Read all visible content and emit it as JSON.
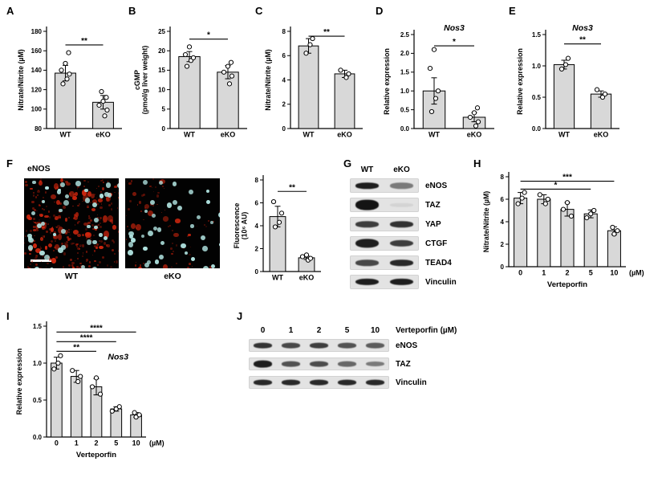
{
  "figure": {
    "panel_labels": {
      "A": "A",
      "B": "B",
      "C": "C",
      "D": "D",
      "E": "E",
      "F": "F",
      "G": "G",
      "H": "H",
      "I": "I",
      "J": "J"
    }
  },
  "panel_f": {
    "stain_label": "eNOS",
    "image_labels": [
      "WT",
      "eKO"
    ]
  },
  "panel_g": {
    "lanes": [
      "WT",
      "eKO"
    ],
    "rows": [
      {
        "label": "eNOS",
        "bands": [
          0.95,
          0.5
        ]
      },
      {
        "label": "TAZ",
        "bands": [
          1.0,
          0.07
        ],
        "h": [
          1.7,
          0.6
        ]
      },
      {
        "label": "YAP",
        "bands": [
          0.8,
          0.85
        ]
      },
      {
        "label": "CTGF",
        "bands": [
          0.95,
          0.8
        ],
        "h": [
          1.5,
          1.1
        ]
      },
      {
        "label": "TEAD4",
        "bands": [
          0.75,
          0.9
        ]
      },
      {
        "label": "Vinculin",
        "bands": [
          0.95,
          0.95
        ],
        "h": [
          1.1,
          1.1
        ]
      }
    ]
  },
  "panel_j": {
    "lanes": [
      "0",
      "1",
      "2",
      "5",
      "10"
    ],
    "header_label": "Verteporfin (µM)",
    "rows": [
      {
        "label": "eNOS",
        "bands": [
          0.85,
          0.75,
          0.8,
          0.7,
          0.65
        ]
      },
      {
        "label": "TAZ",
        "bands": [
          0.95,
          0.7,
          0.72,
          0.6,
          0.5
        ],
        "h": [
          1.3,
          1,
          1,
          1,
          0.9
        ]
      },
      {
        "label": "Vinculin",
        "bands": [
          0.9,
          0.9,
          0.9,
          0.9,
          0.9
        ]
      }
    ]
  },
  "chart_data": [
    {
      "id": "A",
      "type": "bar",
      "ylabel": [
        "Nitrate/Nitrite (µM)"
      ],
      "ylim": [
        80,
        180
      ],
      "yticks": [
        80,
        100,
        120,
        140,
        160,
        180
      ],
      "ydec": 0,
      "categories": [
        "WT",
        "eKO"
      ],
      "values": [
        137,
        107
      ],
      "errors": [
        8,
        7
      ],
      "points": [
        [
          126,
          131,
          136,
          140,
          147,
          158
        ],
        [
          93,
          99,
          104,
          108,
          112,
          118
        ]
      ],
      "sig": [
        {
          "a": 0,
          "b": 1,
          "y": 166,
          "label": "**"
        }
      ]
    },
    {
      "id": "B",
      "type": "bar",
      "ylabel": [
        "cGMP",
        "(pmol/g liver weight)"
      ],
      "ylim": [
        0,
        25
      ],
      "yticks": [
        0,
        5,
        10,
        15,
        20,
        25
      ],
      "ydec": 0,
      "categories": [
        "WT",
        "eKO"
      ],
      "values": [
        18.5,
        14.5
      ],
      "errors": [
        1.3,
        1.7
      ],
      "points": [
        [
          16,
          17.5,
          18.2,
          19,
          21
        ],
        [
          11.5,
          13.5,
          14.5,
          16,
          17
        ]
      ],
      "sig": [
        {
          "a": 0,
          "b": 1,
          "y": 23,
          "label": "*"
        }
      ]
    },
    {
      "id": "C",
      "type": "bar",
      "ylabel": [
        "Nitrate/Nitrite (µM)"
      ],
      "ylim": [
        0,
        8
      ],
      "yticks": [
        0,
        2,
        4,
        6,
        8
      ],
      "ydec": 0,
      "categories": [
        "WT",
        "eKO"
      ],
      "values": [
        6.8,
        4.5
      ],
      "errors": [
        0.6,
        0.3
      ],
      "points": [
        [
          6.2,
          6.9,
          7.4
        ],
        [
          4.2,
          4.5,
          4.8
        ]
      ],
      "sig": [
        {
          "a": 0,
          "b": 1,
          "y": 7.6,
          "label": "**"
        }
      ]
    },
    {
      "id": "D",
      "type": "bar",
      "title": "Nos3",
      "ylabel": [
        "Relative expression"
      ],
      "ylim": [
        0,
        2.5
      ],
      "yticks": [
        0,
        0.5,
        1,
        1.5,
        2,
        2.5
      ],
      "ydec": 1,
      "categories": [
        "WT",
        "eKO"
      ],
      "values": [
        1.0,
        0.3
      ],
      "errors": [
        0.35,
        0.12
      ],
      "points": [
        [
          0.45,
          0.8,
          1.0,
          1.6,
          2.1
        ],
        [
          0.07,
          0.18,
          0.3,
          0.42,
          0.55
        ]
      ],
      "sig": [
        {
          "a": 0,
          "b": 1,
          "y": 2.2,
          "label": "*"
        }
      ]
    },
    {
      "id": "E",
      "type": "bar",
      "title": "Nos3",
      "ylabel": [
        "Relative expression"
      ],
      "ylim": [
        0,
        1.5
      ],
      "yticks": [
        0,
        0.5,
        1,
        1.5
      ],
      "ydec": 1,
      "categories": [
        "WT",
        "eKO"
      ],
      "values": [
        1.02,
        0.55
      ],
      "errors": [
        0.07,
        0.05
      ],
      "points": [
        [
          0.95,
          1.02,
          1.12
        ],
        [
          0.5,
          0.55,
          0.62
        ]
      ],
      "sig": [
        {
          "a": 0,
          "b": 1,
          "y": 1.35,
          "label": "**"
        }
      ]
    },
    {
      "id": "F",
      "type": "bar",
      "ylabel": [
        "Fluorescence",
        "(10⁶ AU)"
      ],
      "ylim": [
        0,
        8
      ],
      "yticks": [
        0,
        2,
        4,
        6,
        8
      ],
      "ydec": 0,
      "categories": [
        "WT",
        "eKO"
      ],
      "values": [
        4.8,
        1.2
      ],
      "errors": [
        0.9,
        0.15
      ],
      "points": [
        [
          3.9,
          4.3,
          5.1,
          6.1
        ],
        [
          1.0,
          1.15,
          1.3,
          1.45
        ]
      ],
      "sig": [
        {
          "a": 0,
          "b": 1,
          "y": 7.0,
          "label": "**"
        }
      ]
    },
    {
      "id": "H",
      "type": "bar",
      "ylabel": [
        "Nitrate/Nitrite (µM)"
      ],
      "ylim": [
        0,
        8
      ],
      "yticks": [
        0,
        2,
        4,
        6,
        8
      ],
      "ydec": 0,
      "categories": [
        "0",
        "1",
        "2",
        "5",
        "10"
      ],
      "xlabel": "Verteporfin",
      "xunit": "(µM)",
      "values": [
        6.1,
        6.0,
        5.1,
        4.7,
        3.2
      ],
      "errors": [
        0.5,
        0.4,
        0.6,
        0.35,
        0.35
      ],
      "points": [
        [
          5.6,
          6.1,
          6.6
        ],
        [
          5.6,
          6.0,
          6.4
        ],
        [
          4.5,
          5.1,
          5.7
        ],
        [
          4.35,
          4.7,
          5.0
        ],
        [
          2.9,
          3.2,
          3.5
        ]
      ],
      "sig": [
        {
          "a": 0,
          "b": 3,
          "y": 6.9,
          "label": "*"
        },
        {
          "a": 0,
          "b": 4,
          "y": 7.6,
          "label": "***"
        }
      ]
    },
    {
      "id": "I",
      "type": "bar",
      "title": "Nos3",
      "title_pos": "inside",
      "ylabel": [
        "Relative expression"
      ],
      "ylim": [
        0,
        1.5
      ],
      "yticks": [
        0,
        0.5,
        1,
        1.5
      ],
      "ydec": 1,
      "categories": [
        "0",
        "1",
        "2",
        "5",
        "10"
      ],
      "xlabel": "Verteporfin",
      "xunit": "(µM)",
      "values": [
        1.0,
        0.82,
        0.68,
        0.38,
        0.3
      ],
      "errors": [
        0.08,
        0.08,
        0.11,
        0.03,
        0.03
      ],
      "points": [
        [
          0.92,
          1.0,
          1.1
        ],
        [
          0.75,
          0.82,
          0.9
        ],
        [
          0.58,
          0.68,
          0.8
        ],
        [
          0.35,
          0.38,
          0.41
        ],
        [
          0.27,
          0.3,
          0.33
        ]
      ],
      "sig": [
        {
          "a": 0,
          "b": 2,
          "y": 1.16,
          "label": "**"
        },
        {
          "a": 0,
          "b": 3,
          "y": 1.29,
          "label": "****"
        },
        {
          "a": 0,
          "b": 4,
          "y": 1.42,
          "label": "****"
        }
      ]
    }
  ]
}
